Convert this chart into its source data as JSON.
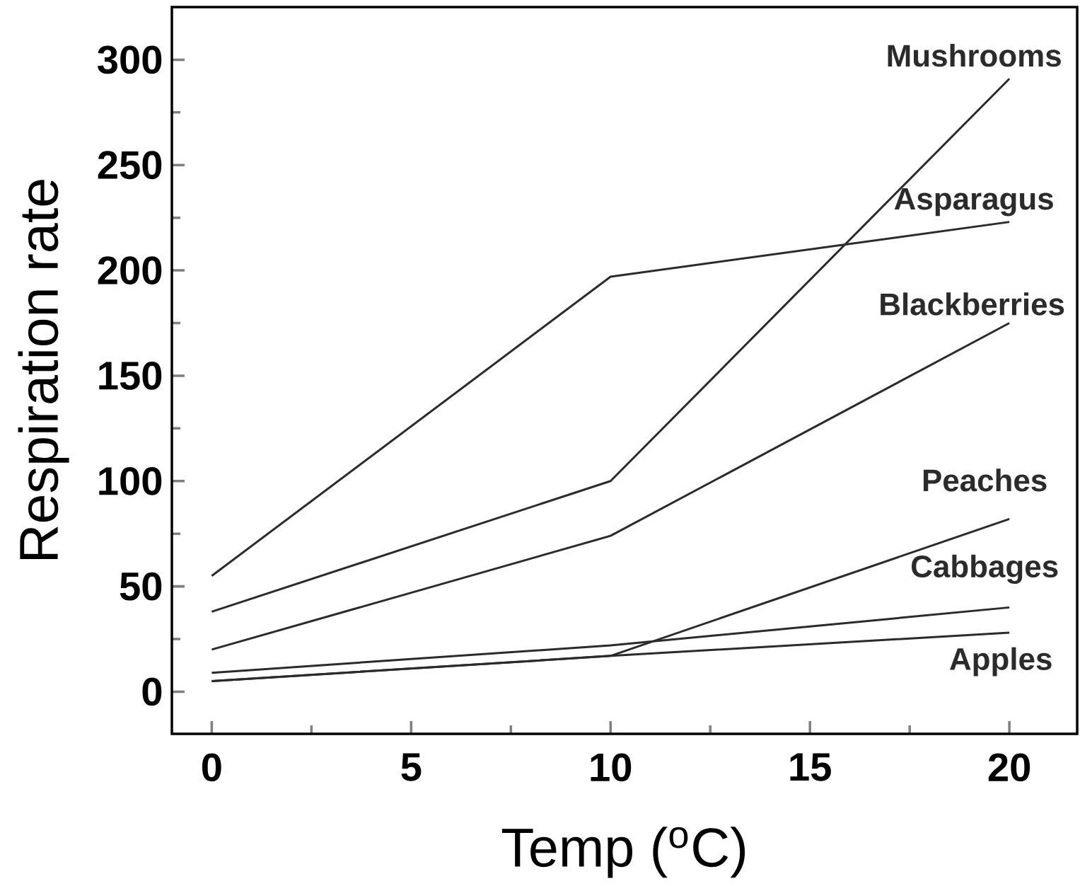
{
  "chart_data": {
    "type": "line",
    "xlabel": "Temp ($^{o}$C)",
    "ylabel": "Respiration rate",
    "x": [
      0,
      10,
      20
    ],
    "series": [
      {
        "name": "Mushrooms",
        "color": "#2b2b2b",
        "values": [
          38,
          100,
          291
        ]
      },
      {
        "name": "Asparagus",
        "color": "#2b2b2b",
        "values": [
          55,
          197,
          223
        ]
      },
      {
        "name": "Blackberries",
        "color": "#2b2b2b",
        "values": [
          20,
          74,
          175
        ]
      },
      {
        "name": "Peaches",
        "color": "#2b2b2b",
        "values": [
          5,
          17,
          82
        ]
      },
      {
        "name": "Cabbages",
        "color": "#2b2b2b",
        "values": [
          9,
          22,
          40
        ]
      },
      {
        "name": "Apples",
        "color": "#2b2b2b",
        "values": [
          5,
          17,
          28
        ]
      }
    ],
    "xlim": [
      -1,
      21.7
    ],
    "ylim": [
      -20,
      325
    ],
    "xticks": [
      0,
      {
        "value": 2.5,
        "label": null
      },
      5,
      {
        "value": 7.5,
        "label": null
      },
      10,
      {
        "value": 12.5,
        "label": null
      },
      15,
      {
        "value": 17.5,
        "label": null
      },
      20
    ],
    "yticks": [
      0,
      {
        "value": 25,
        "label": null
      },
      50,
      {
        "value": 75,
        "label": null
      },
      100,
      {
        "value": 125,
        "label": null
      },
      150,
      {
        "value": 175,
        "label": null
      },
      200,
      {
        "value": 225,
        "label": null
      },
      250,
      {
        "value": 275,
        "label": null
      },
      300
    ],
    "marker": "none",
    "line_style": "solid",
    "grid": false,
    "legend": false
  }
}
